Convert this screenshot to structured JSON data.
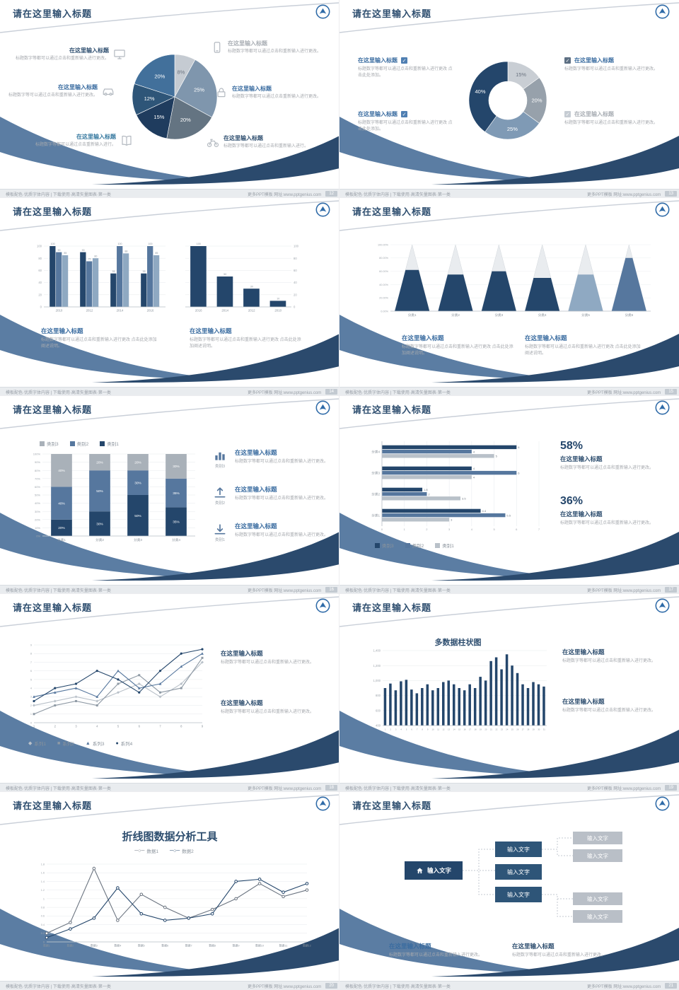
{
  "common": {
    "slide_title": "请在这里输入标题",
    "section_title": "在这里输入标题",
    "footer_left": "模板配色·优质字体内容 | 下载使用·高清矢量图表·第一类",
    "footer_right": "更多PPT模板 网址:www.pptgenius.com",
    "colors": {
      "navy": "#24466b",
      "steel": "#56779e",
      "light_steel": "#8fa9c2",
      "gray": "#9aa2ab",
      "light_gray": "#c7ccd2",
      "title_blue": "#3a6ca0",
      "title_navy": "#2e4e6f",
      "wedge_left": "#5b7da3",
      "wedge_right": "#2b4a6d"
    }
  },
  "slides": {
    "s12": {
      "page": "12",
      "left_items": [
        {
          "title": "在这里输入标题",
          "text": "标题数字等都可以通过点击和重新输入进行更改。",
          "icon": "monitor"
        },
        {
          "title": "在这里输入标题",
          "text": "标题数字等可以通过点击和重新输入进行更改。",
          "icon": "car"
        },
        {
          "title": "在这里输入标题",
          "text": "标题数字等都可以通过点击重新输入进行。",
          "icon": "book"
        }
      ],
      "right_items": [
        {
          "title": "在这里输入标题",
          "text": "标题数字等都可以通过点击和重新输入进行更改。",
          "icon": "phone"
        },
        {
          "title": "在这里输入标题",
          "text": "标题数字等都可以通过点击重新输入进行更改。",
          "icon": "lock"
        },
        {
          "title": "在这里输入标题",
          "text": "标题数字等都可以通过点击和重新输入进行。",
          "icon": "bike"
        }
      ]
    },
    "s13": {
      "page": "13",
      "left_items": [
        {
          "title": "在这里输入标题",
          "text": "标题数字等都可以通过点击和重新输入进行更改 点击此处添加。"
        },
        {
          "title": "在这里输入标题",
          "text": "标题数字等都可以通过点击和重新输入进行更改 点击此处添加。"
        }
      ],
      "right_items": [
        {
          "title": "在这里输入标题",
          "text": "标题数字等都可以通过点击和重新输入进行更改。"
        },
        {
          "title": "在这里输入标题",
          "text": "标题数字等都可以通过点击和重新输入进行更改。"
        }
      ]
    },
    "s14": {
      "page": "14",
      "blocks": [
        {
          "title": "在这里输入标题",
          "text": "标题数字等都可以通过点击和重新输入进行更改 点击此处添加阐述说明。"
        },
        {
          "title": "在这里输入标题",
          "text": "标题数字等都可以通过点击和重新输入进行更改 点击此处添加阐述说明。"
        }
      ]
    },
    "s15": {
      "page": "15",
      "blocks": [
        {
          "title": "在这里输入标题",
          "text": "标题数字等都可以通过点击和重新输入进行更改 点击此处添加阐述说明。"
        },
        {
          "title": "在这里输入标题",
          "text": "标题数字等都可以通过点击和重新输入进行更改 点击此处添加阐述说明。"
        }
      ]
    },
    "s16": {
      "page": "16",
      "rows": [
        {
          "icon_label": "类别3",
          "title": "在这里输入标题",
          "text": "标题数字等都可以通过点击和重新输入进行更改。"
        },
        {
          "icon_label": "类别2",
          "title": "在这里输入标题",
          "text": "标题数字等都可以通过点击和重新输入进行更改。"
        },
        {
          "icon_label": "类别1",
          "title": "在这里输入标题",
          "text": "标题数字等都可以通过点击和重新输入进行更改。"
        }
      ]
    },
    "s17": {
      "page": "17",
      "stats": [
        {
          "value": "58%",
          "title": "在这里输入标题",
          "text": "标题数字等都可以通过点击和重新输入进行更改。"
        },
        {
          "value": "36%",
          "title": "在这里输入标题",
          "text": "标题数字等都可以通过点击和重新输入进行更改。"
        }
      ]
    },
    "s18": {
      "page": "18",
      "blocks": [
        {
          "title": "在这里输入标题",
          "text": "标题数字等都可以通过点击和重新输入进行更改。"
        },
        {
          "title": "在这里输入标题",
          "text": "标题数字等都可以通过点击和重新输入进行更改。"
        }
      ]
    },
    "s19": {
      "page": "19",
      "blocks": [
        {
          "title": "在这里输入标题",
          "text": "标题数字等都可以通过点击和重新输入进行更改。"
        },
        {
          "title": "在这里输入标题",
          "text": "标题数字等都可以通过点击和重新输入进行更改。"
        }
      ]
    },
    "s20": {
      "page": "20"
    },
    "s21": {
      "page": "21",
      "root_label": "输入文字",
      "mid_labels": [
        "输入文字",
        "输入文字",
        "输入文字"
      ],
      "leaf_labels": [
        "输入文字",
        "输入文字",
        "输入文字",
        "输入文字"
      ],
      "blocks": [
        {
          "title": "在这里输入标题",
          "text": "标题数字等都可以通过点击和重新输入进行更改。"
        },
        {
          "title": "在这里输入标题",
          "text": "标题数字等都可以通过点击和重新输入进行更改。"
        }
      ]
    }
  },
  "chart_data": [
    {
      "id": "pie-12",
      "type": "pie",
      "values": [
        8,
        25,
        20,
        15,
        12,
        20
      ],
      "labels": [
        "8%",
        "25%",
        "20%",
        "15%",
        "12%",
        "20%"
      ],
      "colors": [
        "#c5cbd2",
        "#7f96ad",
        "#647482",
        "#1f3c5e",
        "#2e5578",
        "#42709b"
      ],
      "label_colors": [
        "#6b7480",
        "#ffffff",
        "#ffffff",
        "#ffffff",
        "#ffffff",
        "#ffffff"
      ]
    },
    {
      "id": "donut-13",
      "type": "donut",
      "values": [
        15,
        20,
        25,
        40
      ],
      "labels": [
        "15%",
        "20%",
        "25%",
        "40%"
      ],
      "colors": [
        "#c9ced4",
        "#97a1ab",
        "#7f9ab5",
        "#24466b"
      ],
      "label_colors": [
        "#6b7480",
        "#ffffff",
        "#ffffff",
        "#ffffff"
      ]
    },
    {
      "id": "bars-14a",
      "type": "grouped_bars",
      "categories": [
        "2010",
        "2012",
        "2014",
        "2016"
      ],
      "series": [
        {
          "name": "系列1",
          "color": "#24466b",
          "values": [
            100,
            90,
            55,
            55
          ]
        },
        {
          "name": "系列2",
          "color": "#56779e",
          "values": [
            90,
            75,
            100,
            100
          ]
        },
        {
          "name": "系列3",
          "color": "#8fa9c2",
          "values": [
            85,
            80,
            88,
            85
          ]
        }
      ],
      "ylim": [
        0,
        100
      ],
      "yticks": [
        0,
        20,
        40,
        60,
        80,
        100
      ]
    },
    {
      "id": "bars-14b",
      "type": "grouped_bars",
      "categories": [
        "2016",
        "2014",
        "2012",
        "2010"
      ],
      "series": [
        {
          "name": "系列1",
          "color": "#24466b",
          "values": [
            100,
            50,
            30,
            10
          ]
        }
      ],
      "ylim": [
        0,
        100
      ],
      "yticks": [
        0,
        20,
        40,
        60,
        80,
        100
      ]
    },
    {
      "id": "pyramid-15",
      "type": "pyramid",
      "categories": [
        "分类1",
        "分类2",
        "分类3",
        "分类4",
        "分类5",
        "分类6"
      ],
      "values": [
        62,
        55,
        60,
        50,
        55,
        80
      ],
      "colors": [
        "#24466b",
        "#24466b",
        "#24466b",
        "#24466b",
        "#8fa9c2",
        "#56779e"
      ],
      "yticks": [
        "0.00%",
        "20.00%",
        "40.00%",
        "60.00%",
        "80.00%",
        "100.00%"
      ]
    },
    {
      "id": "stacked-16",
      "type": "stacked",
      "categories": [
        "分类1",
        "分类2",
        "分类3",
        "分类4"
      ],
      "series": [
        {
          "name": "类别1",
          "color": "#24466b",
          "values": [
            20,
            30,
            50,
            35
          ]
        },
        {
          "name": "类别2",
          "color": "#56779e",
          "values": [
            40,
            50,
            30,
            35
          ]
        },
        {
          "name": "类别3",
          "color": "#a9b1b9",
          "values": [
            40,
            20,
            20,
            30
          ]
        }
      ],
      "yticks": [
        "0%",
        "10%",
        "20%",
        "30%",
        "40%",
        "50%",
        "60%",
        "70%",
        "80%",
        "90%",
        "100%"
      ],
      "legend": [
        "类别3",
        "类别2",
        "类别1"
      ]
    },
    {
      "id": "hbars-17",
      "type": "hbars",
      "categories": [
        "分类4",
        "分类3",
        "分类2",
        "分类1"
      ],
      "series": [
        {
          "name": "类别3",
          "color": "#24466b",
          "values": [
            6,
            4,
            1.8,
            4.4
          ]
        },
        {
          "name": "类别2",
          "color": "#56779e",
          "values": [
            4,
            6,
            2,
            5.5
          ]
        },
        {
          "name": "类别1",
          "color": "#b9c1c9",
          "values": [
            5,
            4,
            3.5,
            3
          ]
        }
      ],
      "xticks": [
        0,
        1,
        2,
        3,
        4,
        5,
        6,
        7
      ],
      "legend": [
        "类别3",
        "类别2",
        "类别1"
      ]
    },
    {
      "id": "lines-18",
      "type": "lines",
      "x_labels": [
        "1",
        "2",
        "3",
        "4",
        "5",
        "6",
        "7",
        "8",
        "9"
      ],
      "ylim": [
        0,
        9
      ],
      "yticks": [
        0,
        1,
        2,
        3,
        4,
        5,
        6,
        7,
        8,
        9
      ],
      "series": [
        {
          "name": "系列1",
          "color": "#b9c1c9",
          "marker": "diamond",
          "values": [
            2,
            2.5,
            3,
            2.5,
            3.5,
            4.5,
            3,
            4.5,
            7
          ]
        },
        {
          "name": "系列2",
          "color": "#8f9aa5",
          "marker": "square",
          "values": [
            1,
            2,
            2.5,
            2,
            4.5,
            5.5,
            3.5,
            4,
            7.5
          ]
        },
        {
          "name": "系列3",
          "color": "#56779e",
          "marker": "triangle",
          "values": [
            3,
            3.5,
            4,
            3,
            6,
            4,
            4.5,
            6.5,
            8
          ]
        },
        {
          "name": "系列4",
          "color": "#24466b",
          "marker": "circle",
          "values": [
            2.5,
            4,
            4.5,
            6,
            5,
            3.5,
            6,
            8,
            8.5
          ]
        }
      ]
    },
    {
      "id": "columns-19",
      "type": "grouped_bars",
      "title": "多数据柱状图",
      "categories": [
        "1",
        "2",
        "3",
        "4",
        "5",
        "6",
        "7",
        "8",
        "9",
        "10",
        "11",
        "12",
        "13",
        "14",
        "15",
        "16",
        "17",
        "18",
        "19",
        "20",
        "21",
        "22",
        "23",
        "24",
        "25",
        "26",
        "27",
        "28",
        "29",
        "30",
        "31"
      ],
      "series": [
        {
          "name": "数据",
          "color": "#24466b",
          "values": [
            900,
            960,
            870,
            990,
            1010,
            880,
            830,
            900,
            950,
            870,
            900,
            980,
            1000,
            950,
            900,
            870,
            950,
            900,
            1050,
            1000,
            1260,
            1310,
            1150,
            1350,
            1200,
            1100,
            950,
            900,
            980,
            950,
            920
          ]
        }
      ],
      "ylim": [
        400,
        1400
      ],
      "yticks": [
        400,
        600,
        800,
        1000,
        1200,
        1400
      ],
      "tick_format": "comma"
    },
    {
      "id": "lines-20",
      "type": "lines",
      "title": "折线图数据分析工具",
      "x_labels": [
        "数据1",
        "数据2",
        "数据3",
        "数据4",
        "数据5",
        "数据6",
        "数据7",
        "数据8",
        "数据9",
        "数据10",
        "数据11",
        "数据12"
      ],
      "ylim": [
        0,
        1.8
      ],
      "yticks": [
        0,
        0.2,
        0.4,
        0.6,
        0.8,
        1,
        1.2,
        1.4,
        1.6,
        1.8
      ],
      "series": [
        {
          "name": "数据1",
          "color": "#6b7480",
          "marker": "circle_open",
          "values": [
            0.2,
            0.45,
            1.7,
            0.5,
            1.1,
            0.8,
            0.55,
            0.75,
            1.0,
            1.35,
            1.05,
            1.2
          ]
        },
        {
          "name": "数据2",
          "color": "#24466b",
          "marker": "circle_open",
          "values": [
            0.1,
            0.3,
            0.55,
            1.25,
            0.65,
            0.5,
            0.55,
            0.65,
            1.4,
            1.45,
            1.15,
            1.35
          ]
        }
      ]
    }
  ]
}
